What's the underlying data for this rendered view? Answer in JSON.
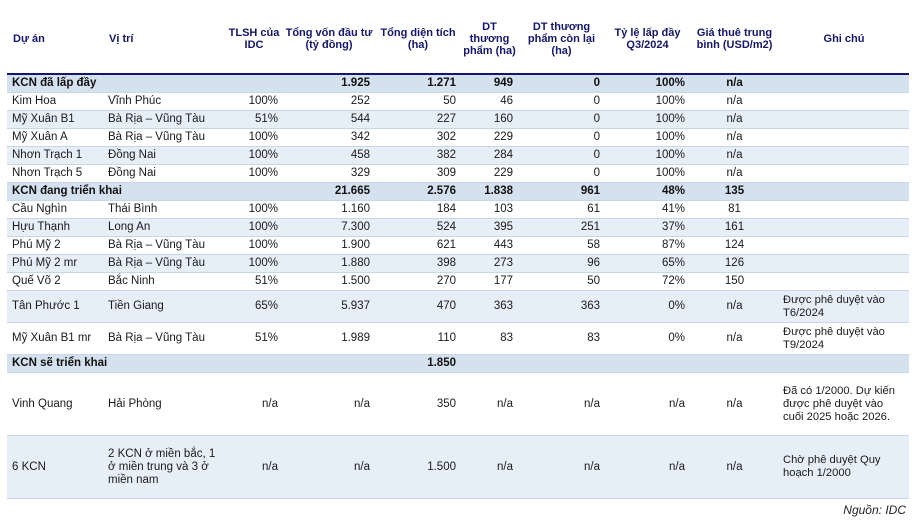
{
  "headers": {
    "project": "Dự án",
    "location": "Vị trí",
    "ownership": "TLSH của IDC",
    "investment": "Tổng vốn đầu tư (tỷ đồng)",
    "area": "Tổng diện tích (ha)",
    "commercial": "DT thương phẩm (ha)",
    "remaining": "DT thương phẩm còn lại (ha)",
    "occupancy": "Tỷ lệ lấp đầy Q3/2024",
    "rent": "Giá thuê trung bình (USD/m2)",
    "note": "Ghi chú"
  },
  "groups": [
    {
      "label": "KCN đã lấp đầy",
      "investment": "1.925",
      "area": "1.271",
      "commercial": "949",
      "remaining": "0",
      "occupancy": "100%",
      "rent": "n/a",
      "rows": [
        {
          "project": "Kim Hoa",
          "location": "Vĩnh Phúc",
          "ownership": "100%",
          "investment": "252",
          "area": "50",
          "commercial": "46",
          "remaining": "0",
          "occupancy": "100%",
          "rent": "n/a",
          "note": ""
        },
        {
          "project": "Mỹ Xuân B1",
          "location": "Bà Rịa – Vũng Tàu",
          "ownership": "51%",
          "investment": "544",
          "area": "227",
          "commercial": "160",
          "remaining": "0",
          "occupancy": "100%",
          "rent": "n/a",
          "note": ""
        },
        {
          "project": "Mỹ Xuân A",
          "location": "Bà Rịa – Vũng Tàu",
          "ownership": "100%",
          "investment": "342",
          "area": "302",
          "commercial": "229",
          "remaining": "0",
          "occupancy": "100%",
          "rent": "n/a",
          "note": ""
        },
        {
          "project": "Nhơn Trạch 1",
          "location": "Đồng Nai",
          "ownership": "100%",
          "investment": "458",
          "area": "382",
          "commercial": "284",
          "remaining": "0",
          "occupancy": "100%",
          "rent": "n/a",
          "note": ""
        },
        {
          "project": "Nhơn Trạch 5",
          "location": "Đồng Nai",
          "ownership": "100%",
          "investment": "329",
          "area": "309",
          "commercial": "229",
          "remaining": "0",
          "occupancy": "100%",
          "rent": "n/a",
          "note": ""
        }
      ]
    },
    {
      "label": "KCN đang triển khai",
      "investment": "21.665",
      "area": "2.576",
      "commercial": "1.838",
      "remaining": "961",
      "occupancy": "48%",
      "rent": "135",
      "rows": [
        {
          "project": "Cầu Nghìn",
          "location": "Thái Bình",
          "ownership": "100%",
          "investment": "1.160",
          "area": "184",
          "commercial": "103",
          "remaining": "61",
          "occupancy": "41%",
          "rent": "81",
          "note": ""
        },
        {
          "project": "Hựu Thạnh",
          "location": "Long An",
          "ownership": "100%",
          "investment": "7.300",
          "area": "524",
          "commercial": "395",
          "remaining": "251",
          "occupancy": "37%",
          "rent": "161",
          "note": ""
        },
        {
          "project": "Phú Mỹ 2",
          "location": "Bà Rịa – Vũng Tàu",
          "ownership": "100%",
          "investment": "1.900",
          "area": "621",
          "commercial": "443",
          "remaining": "58",
          "occupancy": "87%",
          "rent": "124",
          "note": ""
        },
        {
          "project": "Phú Mỹ 2 mr",
          "location": "Bà Rịa – Vũng Tàu",
          "ownership": "100%",
          "investment": "1.880",
          "area": "398",
          "commercial": "273",
          "remaining": "96",
          "occupancy": "65%",
          "rent": "126",
          "note": ""
        },
        {
          "project": "Quế Võ 2",
          "location": "Bắc Ninh",
          "ownership": "51%",
          "investment": "1.500",
          "area": "270",
          "commercial": "177",
          "remaining": "50",
          "occupancy": "72%",
          "rent": "150",
          "note": ""
        },
        {
          "project": "Tân Phước 1",
          "location": "Tiền Giang",
          "ownership": "65%",
          "investment": "5.937",
          "area": "470",
          "commercial": "363",
          "remaining": "363",
          "occupancy": "0%",
          "rent": "n/a",
          "note": "Được phê duyệt vào T6/2024"
        },
        {
          "project": "Mỹ Xuân B1 mr",
          "location": "Bà Rịa – Vũng Tàu",
          "ownership": "51%",
          "investment": "1.989",
          "area": "110",
          "commercial": "83",
          "remaining": "83",
          "occupancy": "0%",
          "rent": "n/a",
          "note": "Được phê duyệt vào T9/2024"
        }
      ]
    },
    {
      "label": "KCN sẽ triển khai",
      "investment": "",
      "area": "1.850",
      "commercial": "",
      "remaining": "",
      "occupancy": "",
      "rent": "",
      "rows": [
        {
          "project": "Vinh Quang",
          "location": "Hải Phòng",
          "ownership": "n/a",
          "investment": "n/a",
          "area": "350",
          "commercial": "n/a",
          "remaining": "n/a",
          "occupancy": "n/a",
          "rent": "n/a",
          "note": "Đã có 1/2000. Dự kiến được phê duyệt vào cuối 2025 hoặc 2026."
        },
        {
          "project": "6 KCN",
          "location": "2 KCN ở miền bắc, 1 ở miền trung và 3 ở miền nam",
          "ownership": "n/a",
          "investment": "n/a",
          "area": "1.500",
          "commercial": "n/a",
          "remaining": "n/a",
          "occupancy": "n/a",
          "rent": "n/a",
          "note": "Chờ phê duyệt Quy hoạch 1/2000"
        }
      ]
    }
  ],
  "source": "Nguồn: IDC"
}
